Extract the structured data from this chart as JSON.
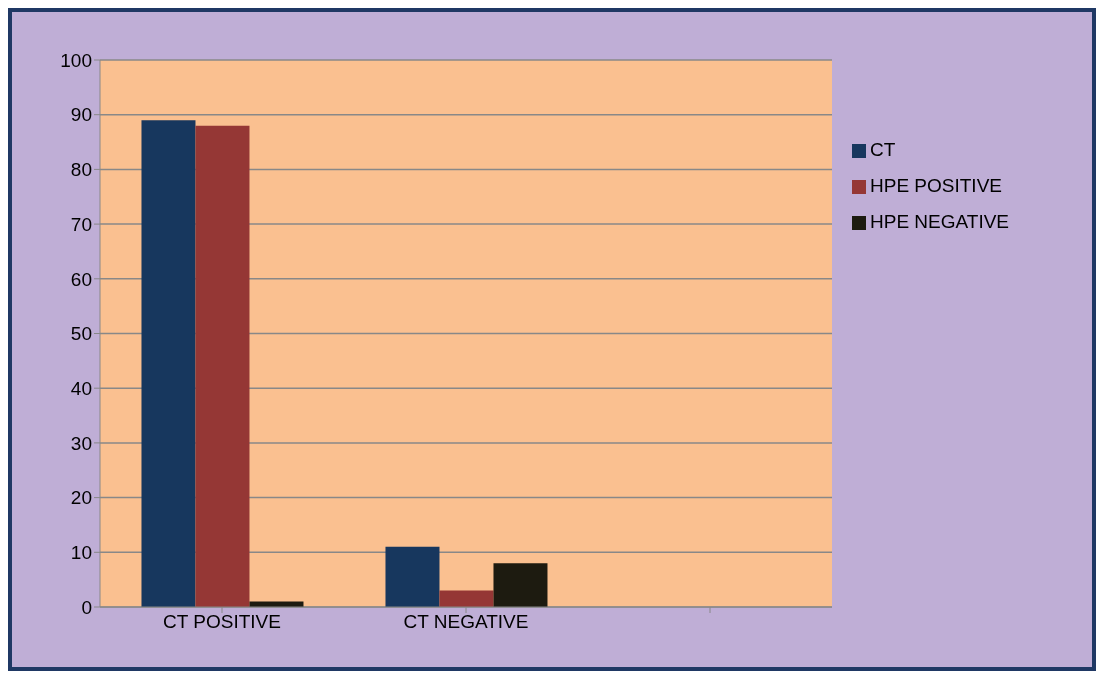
{
  "chart_data": {
    "type": "bar",
    "categories": [
      "CT POSITIVE",
      "CT NEGATIVE",
      null
    ],
    "series": [
      {
        "name": "CT",
        "color": "#17375e",
        "values": [
          89,
          11,
          null
        ]
      },
      {
        "name": "HPE POSITIVE",
        "color": "#953735",
        "values": [
          88,
          3,
          null
        ]
      },
      {
        "name": "HPE NEGATIVE",
        "color": "#1d1b10",
        "values": [
          1,
          8,
          null
        ]
      }
    ],
    "ylim": [
      0,
      100
    ],
    "yticks": [
      0,
      10,
      20,
      30,
      40,
      50,
      60,
      70,
      80,
      90,
      100
    ],
    "grid": "y",
    "legend": "right"
  }
}
